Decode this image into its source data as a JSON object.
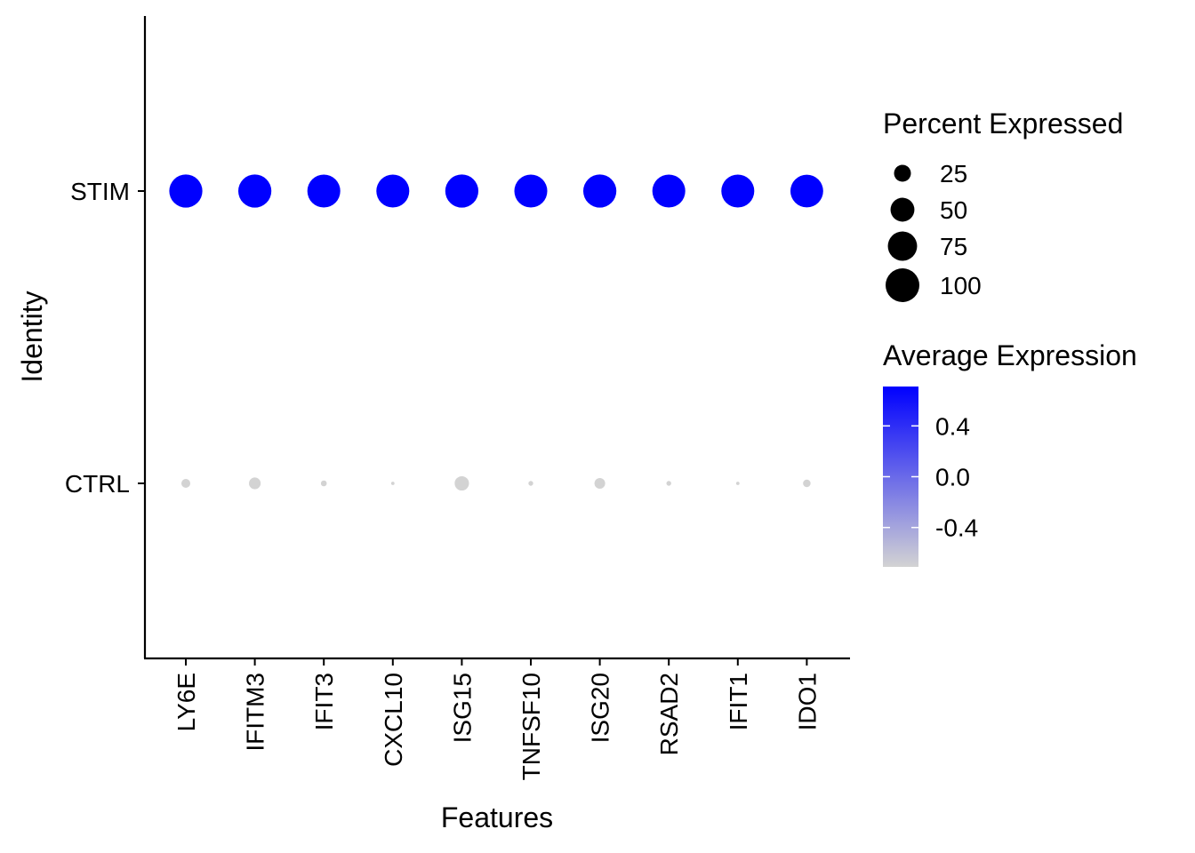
{
  "chart_data": {
    "type": "scatter",
    "subtype": "dot-plot",
    "title": "",
    "xlabel": "Features",
    "ylabel": "Identity",
    "features": [
      "LY6E",
      "IFITM3",
      "IFIT3",
      "CXCL10",
      "ISG15",
      "TNFSF10",
      "ISG20",
      "RSAD2",
      "IFIT1",
      "IDO1"
    ],
    "identities": [
      "CTRL",
      "STIM"
    ],
    "series": [
      {
        "name": "STIM",
        "percent_expressed": [
          96,
          96,
          95,
          95,
          96,
          95,
          96,
          95,
          95,
          94
        ],
        "average_expression": [
          0.71,
          0.71,
          0.71,
          0.71,
          0.71,
          0.71,
          0.71,
          0.71,
          0.71,
          0.71
        ]
      },
      {
        "name": "CTRL",
        "percent_expressed": [
          7,
          12,
          3,
          1,
          18,
          2,
          10,
          2,
          1,
          5
        ],
        "average_expression": [
          -0.71,
          -0.71,
          -0.71,
          -0.71,
          -0.71,
          -0.71,
          -0.71,
          -0.71,
          -0.71,
          -0.71
        ]
      }
    ],
    "legend_size": {
      "title": "Percent Expressed",
      "breaks": [
        25,
        50,
        75,
        100
      ],
      "labels": [
        "25",
        "50",
        "75",
        "100"
      ]
    },
    "legend_color": {
      "title": "Average Expression",
      "range": [
        -0.71,
        0.71
      ],
      "ticks": [
        0.4,
        0.0,
        -0.4
      ],
      "tick_labels": [
        "0.4",
        "0.0",
        "-0.4"
      ],
      "low_color": "#d3d3d3",
      "high_color": "#0000ff"
    },
    "legend_placement": "right",
    "grid": false
  }
}
